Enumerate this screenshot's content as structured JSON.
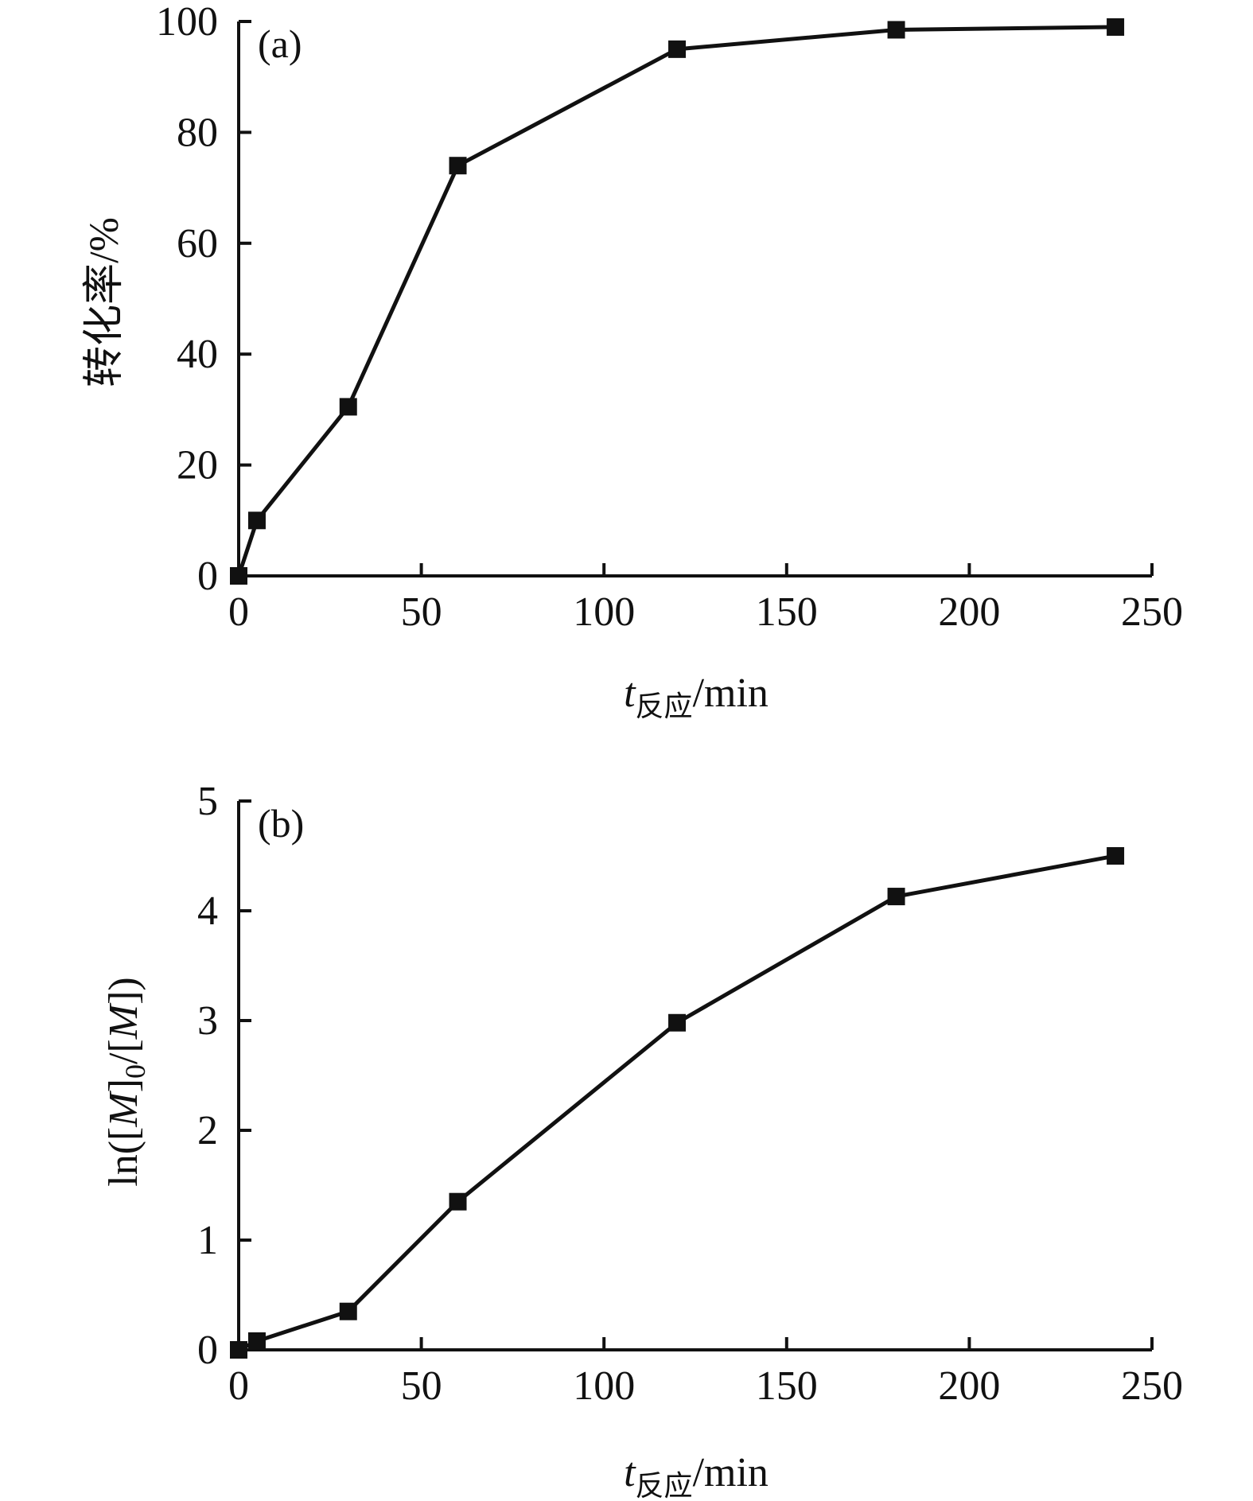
{
  "chart_data": [
    {
      "type": "line",
      "panel_label": "(a)",
      "x": [
        0,
        5,
        30,
        60,
        120,
        180,
        240
      ],
      "series": [
        {
          "values": [
            0,
            10,
            30.5,
            74,
            95,
            98.5,
            99
          ],
          "marker": "square"
        }
      ],
      "xlim": [
        0,
        250
      ],
      "ylim": [
        0,
        100
      ],
      "xticks": [
        "0",
        "50",
        "100",
        "150",
        "200",
        "250"
      ],
      "yticks": [
        "0",
        "20",
        "40",
        "60",
        "80",
        "100"
      ],
      "xlabel": {
        "main": "t",
        "sub": "反应",
        "rest": "/min"
      },
      "ylabel": "转化率/%",
      "grid": false
    },
    {
      "type": "line",
      "panel_label": "(b)",
      "x": [
        0,
        5,
        30,
        60,
        120,
        180,
        240
      ],
      "series": [
        {
          "values": [
            0,
            0.08,
            0.35,
            1.35,
            2.98,
            4.13,
            4.5
          ],
          "marker": "square"
        }
      ],
      "xlim": [
        0,
        250
      ],
      "ylim": [
        0,
        5
      ],
      "xticks": [
        "0",
        "50",
        "100",
        "150",
        "200",
        "250"
      ],
      "yticks": [
        "0",
        "1",
        "2",
        "3",
        "4",
        "5"
      ],
      "xlabel": {
        "main": "t",
        "sub": "反应",
        "rest": "/min"
      },
      "ylabel": {
        "prefix": "ln([",
        "m1": "M",
        "mid": "]",
        "sub": "0",
        "mid2": "/[",
        "m2": "M",
        "suffix": "])"
      },
      "grid": false
    }
  ],
  "style": {
    "line_color": "#111111",
    "marker_color": "#111111"
  }
}
